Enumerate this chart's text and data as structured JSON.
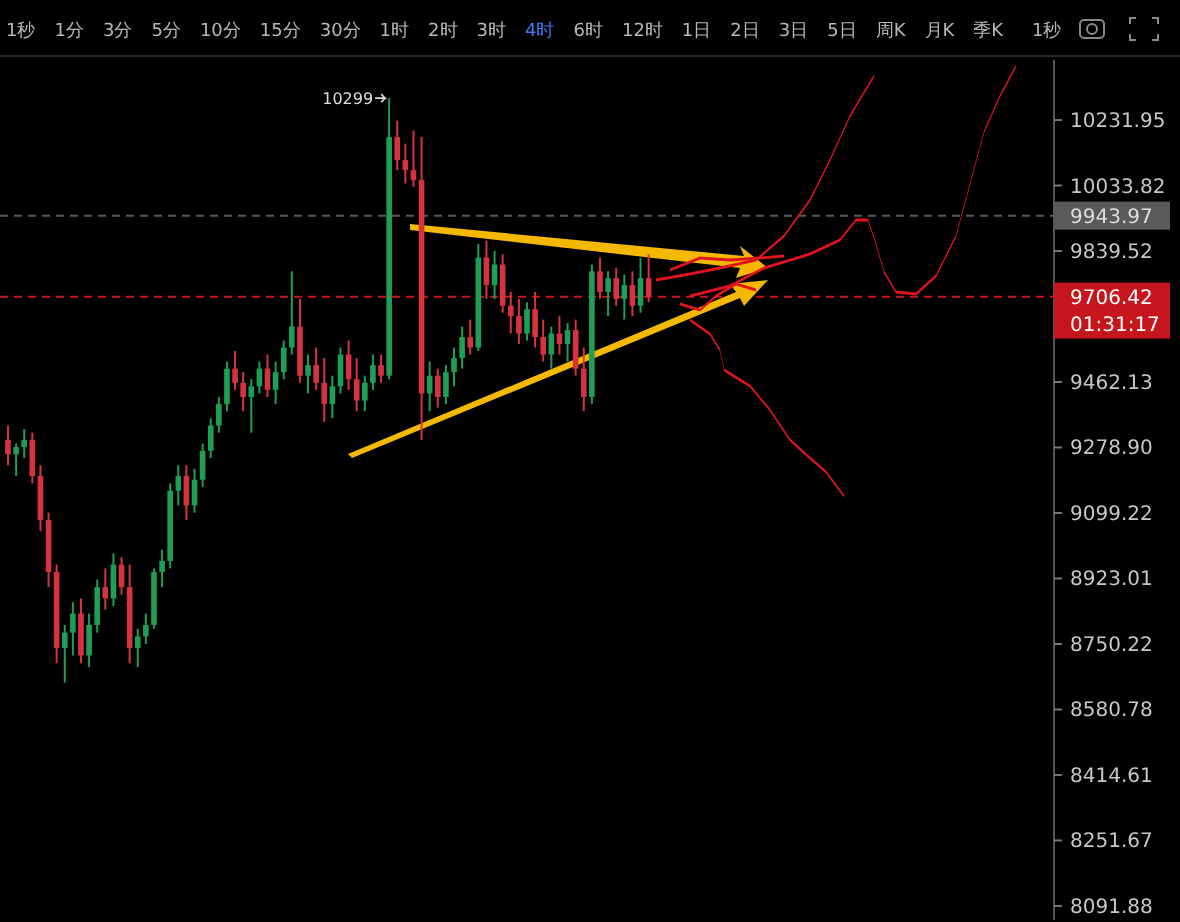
{
  "chart_data": {
    "type": "candlestick",
    "categories": [
      null,
      null,
      null,
      null,
      null,
      null,
      null,
      null,
      null,
      null,
      null,
      null,
      null,
      null,
      null,
      null,
      null,
      null,
      null,
      null,
      null,
      null,
      null,
      null,
      null,
      null,
      null,
      null,
      null,
      null,
      null,
      null,
      null,
      null,
      null,
      null,
      null,
      null,
      null,
      null,
      null,
      null,
      null,
      null,
      null,
      null,
      null,
      null,
      null,
      null,
      null,
      null,
      null,
      null,
      null,
      null,
      null,
      null,
      null,
      null,
      null,
      null,
      null,
      null,
      null,
      null,
      null,
      null,
      null,
      null,
      null,
      null,
      null,
      null,
      null,
      null,
      null,
      null,
      null,
      null,
      null,
      null,
      null,
      null,
      null,
      null,
      null,
      null,
      null,
      null,
      null,
      null,
      null,
      null,
      null,
      null,
      null,
      null,
      null,
      null,
      null,
      null,
      null,
      null,
      null,
      null,
      null,
      null,
      null,
      null,
      null,
      null,
      null,
      null,
      null,
      null,
      null,
      null,
      null,
      null,
      null,
      null,
      null,
      null,
      null,
      null,
      null,
      null,
      null
    ],
    "ohlc": [
      [
        9300,
        9340,
        9230,
        9260
      ],
      [
        9260,
        9290,
        9200,
        9280
      ],
      [
        9280,
        9330,
        9250,
        9300
      ],
      [
        9300,
        9320,
        9180,
        9200
      ],
      [
        9200,
        9230,
        9050,
        9080
      ],
      [
        9080,
        9100,
        8900,
        8940
      ],
      [
        8940,
        8960,
        8700,
        8740
      ],
      [
        8740,
        8800,
        8650,
        8780
      ],
      [
        8780,
        8860,
        8720,
        8830
      ],
      [
        8830,
        8870,
        8700,
        8720
      ],
      [
        8720,
        8830,
        8690,
        8800
      ],
      [
        8800,
        8920,
        8780,
        8900
      ],
      [
        8900,
        8950,
        8840,
        8870
      ],
      [
        8870,
        8990,
        8850,
        8960
      ],
      [
        8960,
        8980,
        8880,
        8900
      ],
      [
        8900,
        8960,
        8700,
        8740
      ],
      [
        8740,
        8790,
        8690,
        8770
      ],
      [
        8770,
        8830,
        8750,
        8800
      ],
      [
        8800,
        8950,
        8790,
        8940
      ],
      [
        8940,
        9000,
        8900,
        8970
      ],
      [
        8970,
        9180,
        8950,
        9160
      ],
      [
        9160,
        9230,
        9120,
        9200
      ],
      [
        9200,
        9230,
        9080,
        9120
      ],
      [
        9120,
        9220,
        9100,
        9190
      ],
      [
        9190,
        9290,
        9170,
        9270
      ],
      [
        9270,
        9360,
        9250,
        9340
      ],
      [
        9340,
        9420,
        9320,
        9400
      ],
      [
        9400,
        9520,
        9380,
        9500
      ],
      [
        9500,
        9550,
        9440,
        9460
      ],
      [
        9460,
        9490,
        9380,
        9420
      ],
      [
        9420,
        9470,
        9320,
        9450
      ],
      [
        9450,
        9520,
        9430,
        9500
      ],
      [
        9500,
        9540,
        9420,
        9440
      ],
      [
        9440,
        9520,
        9400,
        9490
      ],
      [
        9490,
        9580,
        9470,
        9560
      ],
      [
        9560,
        9780,
        9540,
        9620
      ],
      [
        9620,
        9700,
        9460,
        9480
      ],
      [
        9480,
        9540,
        9430,
        9510
      ],
      [
        9510,
        9560,
        9440,
        9460
      ],
      [
        9460,
        9530,
        9350,
        9400
      ],
      [
        9400,
        9480,
        9360,
        9450
      ],
      [
        9450,
        9560,
        9430,
        9540
      ],
      [
        9540,
        9580,
        9440,
        9470
      ],
      [
        9470,
        9530,
        9380,
        9410
      ],
      [
        9410,
        9480,
        9380,
        9460
      ],
      [
        9460,
        9540,
        9440,
        9510
      ],
      [
        9510,
        9540,
        9460,
        9480
      ],
      [
        9480,
        10299,
        9470,
        10180
      ],
      [
        10180,
        10230,
        10080,
        10110
      ],
      [
        10110,
        10160,
        10040,
        10080
      ],
      [
        10080,
        10200,
        10030,
        10050
      ],
      [
        10050,
        10180,
        9300,
        9430
      ],
      [
        9430,
        9520,
        9380,
        9480
      ],
      [
        9480,
        9500,
        9390,
        9420
      ],
      [
        9420,
        9510,
        9400,
        9490
      ],
      [
        9490,
        9560,
        9450,
        9530
      ],
      [
        9530,
        9620,
        9500,
        9590
      ],
      [
        9590,
        9640,
        9540,
        9560
      ],
      [
        9560,
        9860,
        9550,
        9820
      ],
      [
        9820,
        9870,
        9700,
        9740
      ],
      [
        9740,
        9840,
        9700,
        9800
      ],
      [
        9800,
        9830,
        9660,
        9680
      ],
      [
        9680,
        9720,
        9600,
        9650
      ],
      [
        9650,
        9700,
        9570,
        9600
      ],
      [
        9600,
        9690,
        9580,
        9670
      ],
      [
        9670,
        9720,
        9560,
        9590
      ],
      [
        9590,
        9640,
        9520,
        9540
      ],
      [
        9540,
        9620,
        9500,
        9600
      ],
      [
        9600,
        9650,
        9540,
        9570
      ],
      [
        9570,
        9630,
        9520,
        9610
      ],
      [
        9610,
        9640,
        9480,
        9500
      ],
      [
        9500,
        9560,
        9380,
        9420
      ],
      [
        9420,
        9800,
        9400,
        9780
      ],
      [
        9780,
        9820,
        9700,
        9720
      ],
      [
        9720,
        9780,
        9650,
        9760
      ],
      [
        9760,
        9790,
        9680,
        9700
      ],
      [
        9700,
        9770,
        9640,
        9740
      ],
      [
        9740,
        9780,
        9650,
        9680
      ],
      [
        9680,
        9820,
        9660,
        9760
      ],
      [
        9760,
        9830,
        9690,
        9706.42
      ],
      null,
      null,
      null,
      null,
      null,
      null,
      null,
      null,
      null,
      null,
      null,
      null,
      null,
      null,
      null,
      null,
      null,
      null,
      null,
      null,
      null,
      null,
      null,
      null,
      null,
      null,
      null,
      null,
      null,
      null,
      null,
      null,
      null,
      null,
      null,
      null,
      null,
      null,
      null,
      null,
      null,
      null,
      null,
      null,
      null,
      null,
      null,
      null,
      null
    ],
    "log": "y",
    "ylim": [
      8058,
      10417
    ],
    "yticks": [
      10231.95,
      10033.82,
      9839.52,
      9462.13,
      {
        "value": 9278.9,
        "label": "9278.90"
      },
      9099.22,
      8923.01,
      8750.22,
      8580.78,
      8414.61,
      8251.67,
      8091.88
    ],
    "ref_lines": [
      {
        "axis": "y",
        "value": 9943.97,
        "label": "9943.97",
        "color": "#5a5a5a",
        "line_style": "dashed"
      },
      {
        "axis": "y",
        "value": 9706.42,
        "label": "9706.42",
        "color": "#c4161c",
        "line_style": "dashed"
      }
    ],
    "annotations": [
      "10299",
      "01:31:17",
      "1秒",
      "1分",
      "3分",
      "5分",
      "10分",
      "15分",
      "30分",
      "1时",
      "2时",
      "3时",
      "4时",
      "6时",
      "12时",
      "1日",
      "2日",
      "3日",
      "5日",
      "周K",
      "月K",
      "季K",
      "1秒"
    ],
    "grid": false
  }
}
